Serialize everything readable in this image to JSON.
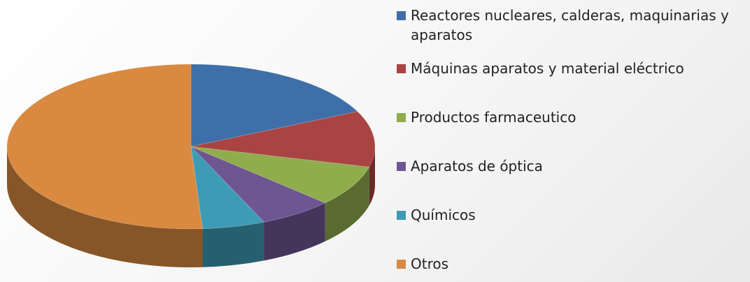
{
  "chart_data": {
    "type": "pie",
    "categories": [
      "Reactores nucleares, calderas, maquinarias y aparatos",
      "Máquinas aparatos y material eléctrico",
      "Productos farmaceutico",
      "Aparatos de óptica",
      "Químicos",
      "Otros"
    ],
    "values": [
      18,
      11,
      8,
      6.5,
      5.5,
      51
    ],
    "colors": [
      "#3f6fa8",
      "#a94442",
      "#8fad4c",
      "#6e5693",
      "#3e9bb5",
      "#d98a40"
    ],
    "legend": "right"
  }
}
